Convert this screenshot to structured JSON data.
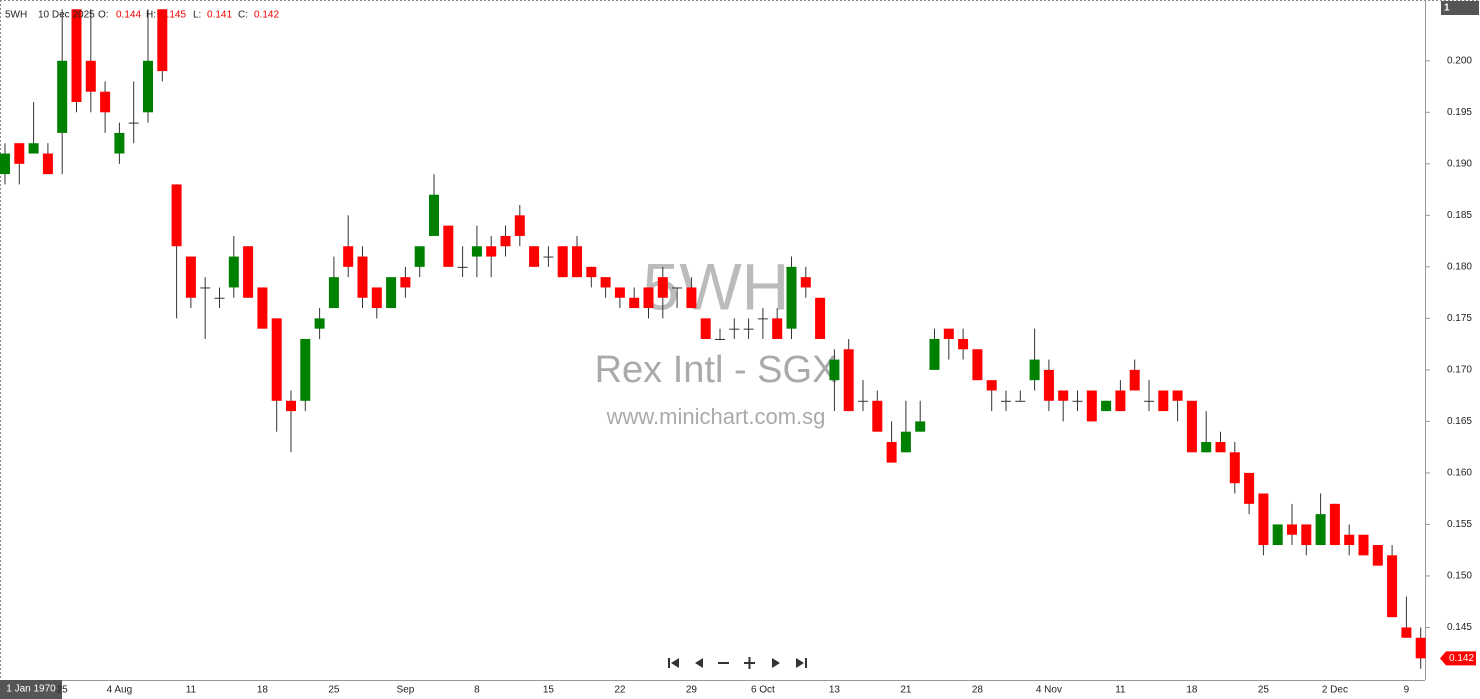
{
  "chart_data": {
    "type": "candlestick",
    "symbol": "5WH",
    "date": "10 Dec 2025",
    "header_labels": [
      "O:",
      "H:",
      "L:",
      "C:"
    ],
    "watermark": [
      "5WH",
      "Rex Intl - SGX",
      "www.minichart.com.sg"
    ],
    "corner_label": "1",
    "time_label": "1 Jan 1970",
    "up_color": "#008000",
    "down_color": "#ff0000",
    "categories": [
      null,
      null,
      null,
      null,
      "25",
      null,
      null,
      null,
      "4 Aug",
      null,
      null,
      null,
      null,
      "11",
      null,
      null,
      null,
      null,
      "18",
      null,
      null,
      null,
      null,
      "25",
      null,
      null,
      null,
      null,
      "Sep",
      null,
      null,
      null,
      null,
      "8",
      null,
      null,
      null,
      null,
      "15",
      null,
      null,
      null,
      null,
      "22",
      null,
      null,
      null,
      null,
      "29",
      null,
      null,
      null,
      null,
      "6 Oct",
      null,
      null,
      null,
      null,
      "13",
      null,
      null,
      null,
      null,
      "21",
      null,
      null,
      null,
      null,
      "28",
      null,
      null,
      null,
      null,
      "4 Nov",
      null,
      null,
      null,
      null,
      "11",
      null,
      null,
      null,
      null,
      "18",
      null,
      null,
      null,
      null,
      "25",
      null,
      null,
      null,
      null,
      "2 Dec",
      null,
      null,
      null,
      null,
      "9",
      null
    ],
    "open": [
      0.189,
      0.192,
      0.191,
      0.191,
      0.193,
      0.205,
      0.2,
      0.197,
      0.191,
      0.194,
      0.195,
      0.205,
      0.188,
      0.181,
      0.178,
      0.177,
      0.178,
      0.182,
      0.178,
      0.175,
      0.167,
      0.167,
      0.174,
      0.176,
      0.182,
      0.181,
      0.178,
      0.176,
      0.179,
      0.18,
      0.183,
      0.184,
      0.18,
      0.181,
      0.182,
      0.183,
      0.185,
      0.182,
      0.181,
      0.182,
      0.182,
      0.18,
      0.179,
      0.178,
      0.177,
      0.178,
      0.179,
      0.178,
      0.178,
      0.175,
      0.173,
      0.174,
      0.174,
      0.175,
      0.175,
      0.174,
      0.179,
      0.177,
      0.169,
      0.172,
      0.167,
      0.167,
      0.163,
      0.162,
      0.164,
      0.17,
      0.174,
      0.173,
      0.172,
      0.169,
      0.167,
      0.167,
      0.169,
      0.17,
      0.168,
      0.167,
      0.168,
      0.166,
      0.168,
      0.17,
      0.167,
      0.168,
      0.168,
      0.167,
      0.162,
      0.163,
      0.162,
      0.16,
      0.158,
      0.153,
      0.155,
      0.155,
      0.153,
      0.157,
      0.154,
      0.154,
      0.153,
      0.152,
      0.145,
      0.144
    ],
    "high": [
      0.192,
      0.192,
      0.196,
      0.192,
      0.205,
      0.205,
      0.205,
      0.198,
      0.194,
      0.198,
      0.205,
      0.205,
      0.188,
      0.181,
      0.179,
      0.178,
      0.183,
      0.182,
      0.178,
      0.175,
      0.168,
      0.173,
      0.176,
      0.181,
      0.185,
      0.182,
      0.178,
      0.179,
      0.18,
      0.182,
      0.189,
      0.184,
      0.182,
      0.184,
      0.183,
      0.184,
      0.186,
      0.182,
      0.182,
      0.182,
      0.183,
      0.18,
      0.179,
      0.178,
      0.178,
      0.178,
      0.18,
      0.178,
      0.179,
      0.175,
      0.174,
      0.175,
      0.175,
      0.176,
      0.176,
      0.181,
      0.18,
      0.177,
      0.172,
      0.173,
      0.169,
      0.168,
      0.165,
      0.167,
      0.167,
      0.174,
      0.174,
      0.174,
      0.172,
      0.169,
      0.168,
      0.168,
      0.174,
      0.171,
      0.168,
      0.168,
      0.168,
      0.167,
      0.169,
      0.171,
      0.169,
      0.168,
      0.168,
      0.167,
      0.166,
      0.164,
      0.163,
      0.16,
      0.158,
      0.155,
      0.157,
      0.155,
      0.158,
      0.157,
      0.155,
      0.154,
      0.153,
      0.153,
      0.148,
      0.145
    ],
    "low": [
      0.188,
      0.188,
      0.191,
      0.189,
      0.189,
      0.195,
      0.195,
      0.193,
      0.19,
      0.192,
      0.194,
      0.198,
      0.175,
      0.176,
      0.173,
      0.176,
      0.177,
      0.177,
      0.174,
      0.164,
      0.162,
      0.166,
      0.173,
      0.176,
      0.179,
      0.176,
      0.175,
      0.176,
      0.177,
      0.179,
      0.183,
      0.18,
      0.179,
      0.179,
      0.179,
      0.181,
      0.182,
      0.18,
      0.18,
      0.179,
      0.179,
      0.178,
      0.177,
      0.176,
      0.176,
      0.175,
      0.175,
      0.176,
      0.176,
      0.173,
      0.173,
      0.173,
      0.173,
      0.173,
      0.173,
      0.173,
      0.177,
      0.173,
      0.166,
      0.166,
      0.166,
      0.164,
      0.161,
      0.162,
      0.164,
      0.17,
      0.171,
      0.171,
      0.169,
      0.166,
      0.166,
      0.167,
      0.168,
      0.166,
      0.165,
      0.166,
      0.165,
      0.166,
      0.166,
      0.168,
      0.166,
      0.166,
      0.165,
      0.162,
      0.162,
      0.162,
      0.158,
      0.156,
      0.152,
      0.153,
      0.153,
      0.152,
      0.153,
      0.153,
      0.152,
      0.152,
      0.151,
      0.146,
      0.144,
      0.141
    ],
    "close": [
      0.191,
      0.19,
      0.192,
      0.189,
      0.2,
      0.196,
      0.197,
      0.195,
      0.193,
      0.194,
      0.2,
      0.199,
      0.182,
      0.177,
      0.178,
      0.177,
      0.181,
      0.177,
      0.174,
      0.167,
      0.166,
      0.173,
      0.175,
      0.179,
      0.18,
      0.177,
      0.176,
      0.179,
      0.178,
      0.182,
      0.187,
      0.18,
      0.18,
      0.182,
      0.181,
      0.182,
      0.183,
      0.18,
      0.181,
      0.179,
      0.179,
      0.179,
      0.178,
      0.177,
      0.176,
      0.176,
      0.177,
      0.178,
      0.176,
      0.173,
      0.173,
      0.174,
      0.174,
      0.175,
      0.173,
      0.18,
      0.178,
      0.173,
      0.171,
      0.166,
      0.167,
      0.164,
      0.161,
      0.164,
      0.165,
      0.173,
      0.173,
      0.172,
      0.169,
      0.168,
      0.167,
      0.167,
      0.171,
      0.167,
      0.167,
      0.167,
      0.165,
      0.167,
      0.166,
      0.168,
      0.167,
      0.166,
      0.167,
      0.162,
      0.163,
      0.162,
      0.159,
      0.157,
      0.153,
      0.155,
      0.154,
      0.153,
      0.156,
      0.153,
      0.153,
      0.152,
      0.151,
      0.146,
      0.144,
      0.142
    ],
    "ylim": [
      0.1399,
      0.2059
    ],
    "yticks": [
      0.145,
      {
        "value": 0.15,
        "label": "0.150"
      },
      0.155,
      {
        "value": 0.16,
        "label": "0.160"
      },
      0.165,
      {
        "value": 0.17,
        "label": "0.170"
      },
      0.175,
      {
        "value": 0.18,
        "label": "0.180"
      },
      0.185,
      {
        "value": 0.19,
        "label": "0.190"
      },
      0.195,
      {
        "value": 0.2,
        "label": "0.200"
      }
    ]
  }
}
